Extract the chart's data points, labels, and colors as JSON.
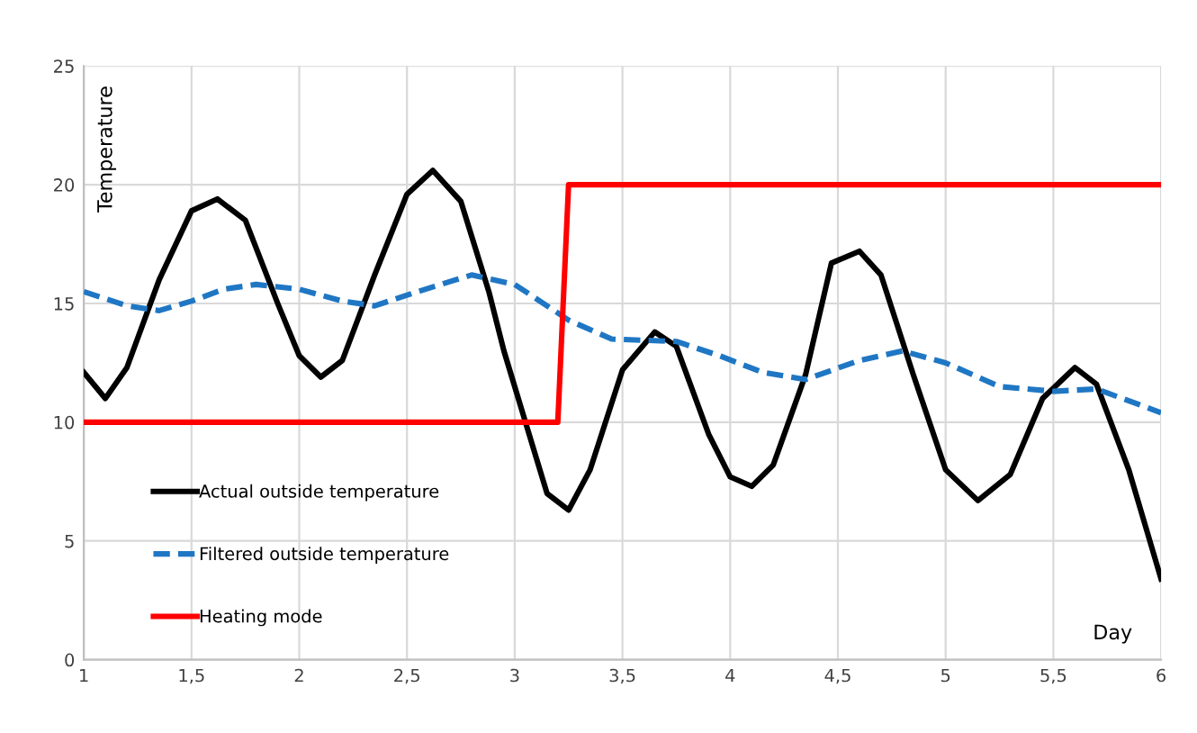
{
  "chart_data": {
    "type": "line",
    "xlabel": "Day",
    "ylabel": "Temperature",
    "xlim": [
      1,
      6
    ],
    "ylim": [
      0,
      25
    ],
    "xticks": [
      1,
      {
        "value": 1.5,
        "label": "1,5"
      },
      2,
      {
        "value": 2.5,
        "label": "2,5"
      },
      3,
      {
        "value": 3.5,
        "label": "3,5"
      },
      4,
      {
        "value": 4.5,
        "label": "4,5"
      },
      5,
      {
        "value": 5.5,
        "label": "5,5"
      },
      6
    ],
    "yticks": [
      0,
      5,
      10,
      15,
      20,
      25
    ],
    "grid": true,
    "legend": "bottom left",
    "marker": "none",
    "series": [
      {
        "name": "Actual outside temperature",
        "color": "#000000",
        "line_style": "solid",
        "x": [
          1.0,
          1.1,
          1.2,
          1.35,
          1.5,
          1.62,
          1.75,
          1.9,
          2.0,
          2.1,
          2.2,
          2.35,
          2.5,
          2.62,
          2.75,
          2.88,
          2.95,
          3.05,
          3.15,
          3.25,
          3.35,
          3.5,
          3.65,
          3.75,
          3.9,
          4.0,
          4.1,
          4.2,
          4.35,
          4.47,
          4.6,
          4.7,
          4.85,
          5.0,
          5.15,
          5.3,
          5.45,
          5.6,
          5.7,
          5.85,
          6.0
        ],
        "values": [
          12.1,
          11.0,
          12.3,
          16,
          18.9,
          19.4,
          18.5,
          15,
          12.8,
          11.9,
          12.6,
          16.2,
          19.6,
          20.6,
          19.3,
          15.5,
          13,
          10,
          7,
          6.3,
          8,
          12.2,
          13.8,
          13.2,
          9.5,
          7.7,
          7.3,
          8.2,
          12,
          16.7,
          17.2,
          16.2,
          12,
          8,
          6.7,
          7.8,
          11,
          12.3,
          11.6,
          8,
          3.4
        ]
      },
      {
        "name": "Filtered outside temperature",
        "color": "#1f77c4",
        "line_style": "dashed",
        "x": [
          1.0,
          1.2,
          1.35,
          1.5,
          1.65,
          1.8,
          2.0,
          2.2,
          2.35,
          2.55,
          2.8,
          3.0,
          3.25,
          3.45,
          3.75,
          3.95,
          4.15,
          4.35,
          4.6,
          4.8,
          5.0,
          5.25,
          5.5,
          5.7,
          6.0
        ],
        "values": [
          15.5,
          14.9,
          14.7,
          15.1,
          15.6,
          15.8,
          15.6,
          15.1,
          14.9,
          15.5,
          16.2,
          15.8,
          14.3,
          13.5,
          13.4,
          12.8,
          12.1,
          11.8,
          12.6,
          13.0,
          12.5,
          11.5,
          11.3,
          11.4,
          10.4
        ]
      },
      {
        "name": "Heating mode",
        "color": "#ff0000",
        "line_style": "solid",
        "x": [
          1,
          3.2,
          3.25,
          6
        ],
        "values": [
          10,
          10,
          20,
          20
        ]
      }
    ]
  }
}
